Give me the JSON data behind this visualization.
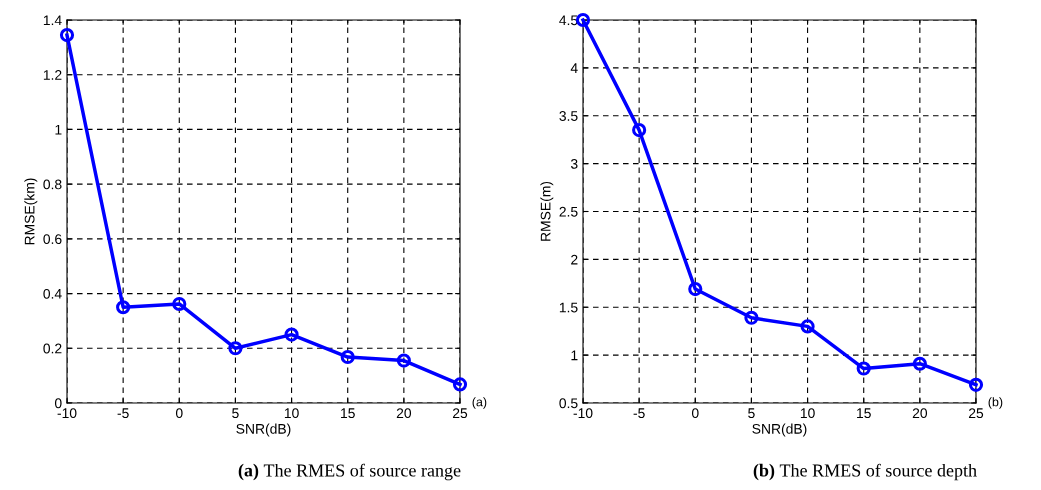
{
  "chart_data": [
    {
      "type": "line",
      "xlabel": "SNR(dB)",
      "ylabel": "RMSE(km)",
      "x": [
        -10,
        -5,
        0,
        5,
        10,
        15,
        20,
        25
      ],
      "series": [
        {
          "color": "#0000ff",
          "values": [
            1.345,
            0.35,
            0.362,
            0.2,
            0.25,
            0.168,
            0.155,
            0.068
          ]
        }
      ],
      "xlim": [
        -10,
        25
      ],
      "xticks": [
        -10,
        -5,
        0,
        5,
        10,
        15,
        20,
        25
      ],
      "ylim": [
        0,
        1.4
      ],
      "yticks": [
        0,
        0.2,
        0.4,
        0.6,
        0.8,
        1,
        1.2,
        1.4
      ],
      "grid": true,
      "marker": "circle",
      "line_style": "solid",
      "annotations": [
        "(a)",
        "(a) The RMES of source range"
      ]
    },
    {
      "type": "line",
      "xlabel": "SNR(dB)",
      "ylabel": "RMSE(m)",
      "x": [
        -10,
        -5,
        0,
        5,
        10,
        15,
        20,
        25
      ],
      "series": [
        {
          "color": "#0000ff",
          "values": [
            4.5,
            3.35,
            1.69,
            1.39,
            1.3,
            0.86,
            0.91,
            0.69
          ]
        }
      ],
      "xlim": [
        -10,
        25
      ],
      "xticks": [
        -10,
        -5,
        0,
        5,
        10,
        15,
        20,
        25
      ],
      "ylim": [
        0.5,
        4.5
      ],
      "yticks": [
        0.5,
        1,
        1.5,
        2,
        2.5,
        3,
        3.5,
        4,
        4.5
      ],
      "grid": true,
      "marker": "circle",
      "line_style": "solid",
      "annotations": [
        "(b)",
        "(b) The RMES of source depth"
      ]
    }
  ]
}
